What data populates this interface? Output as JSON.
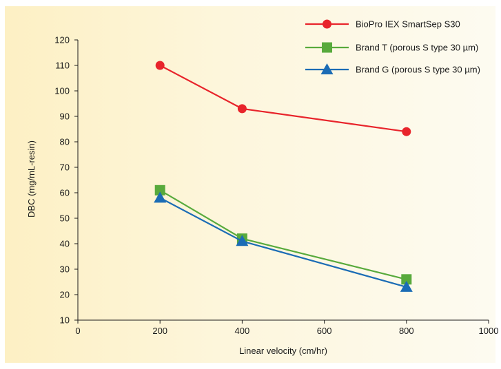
{
  "chart_data": {
    "type": "line",
    "xlabel": "Linear velocity (cm/hr)",
    "ylabel": "DBC (mg/mL-resin)",
    "xlim": [
      0,
      1000
    ],
    "ylim": [
      10,
      120
    ],
    "xticks": [
      0,
      200,
      400,
      600,
      800,
      1000
    ],
    "yticks": [
      10,
      20,
      30,
      40,
      50,
      60,
      70,
      80,
      90,
      100,
      110,
      120
    ],
    "grid": false,
    "legend_position": "top-right",
    "series": [
      {
        "name": "BioPro IEX SmartSep S30",
        "color": "#e8242b",
        "marker": "circle",
        "x": [
          200,
          400,
          800
        ],
        "y": [
          110,
          93,
          84
        ]
      },
      {
        "name": "Brand T (porous S type 30 µm)",
        "color": "#58aa3c",
        "marker": "square",
        "x": [
          200,
          400,
          800
        ],
        "y": [
          61,
          42,
          26
        ]
      },
      {
        "name": "Brand G (porous S type 30 µm)",
        "color": "#1b6cb5",
        "marker": "triangle",
        "x": [
          200,
          400,
          800
        ],
        "y": [
          58,
          41,
          23
        ]
      }
    ]
  }
}
